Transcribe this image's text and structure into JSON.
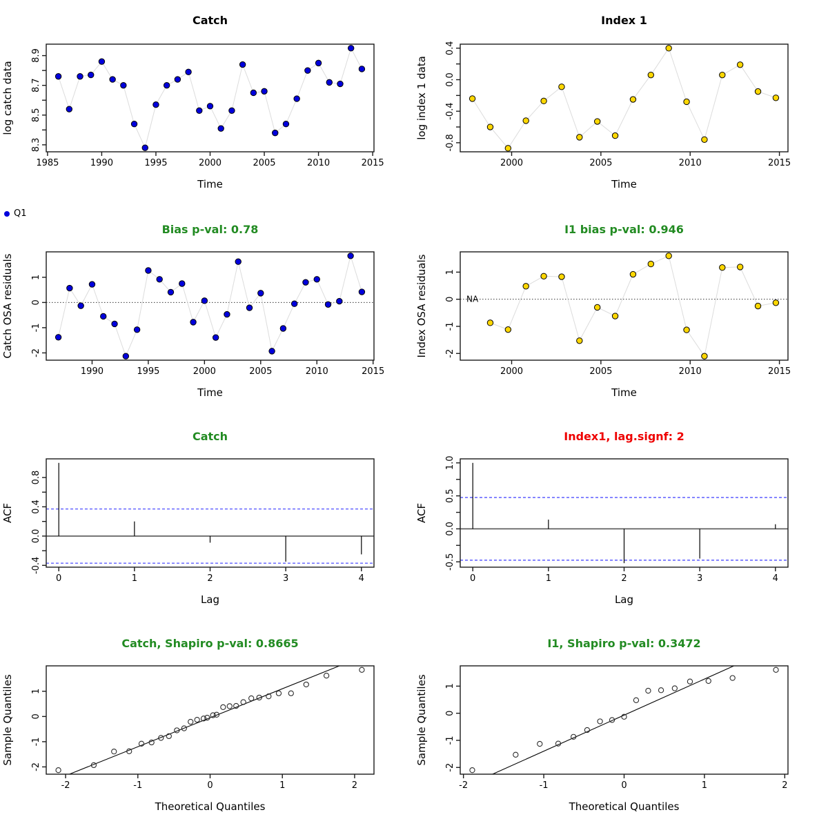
{
  "palette": {
    "point_blue": "#0000DC",
    "point_gold": "#FFD700",
    "title_green": "#228B22",
    "title_red": "#EE0000",
    "title_black": "#000000",
    "connector": "#DCDCDC",
    "conf_line": "#3A3AFF",
    "axis": "#1A1A1A"
  },
  "legend": {
    "label": "Q1"
  },
  "chart_data": [
    {
      "id": "catch-data",
      "type": "scatter",
      "render": "series",
      "connected": true,
      "title": "Catch",
      "title_color": "#000000",
      "xlabel": "Time",
      "ylabel": "log catch data",
      "xlim": [
        1984.88,
        2015.12
      ],
      "ylim": [
        8.253,
        8.977
      ],
      "xticks": [
        1985,
        1990,
        1995,
        2000,
        2005,
        2010,
        2015
      ],
      "xtick_labels": [
        "1985",
        "1990",
        "1995",
        "2000",
        "2005",
        "2010",
        "2015"
      ],
      "yticks": [
        8.3,
        8.4,
        8.5,
        8.6,
        8.7,
        8.8,
        8.9
      ],
      "ytick_labels": [
        "8.3",
        "",
        "8.5",
        "",
        "8.7",
        "",
        "8.9"
      ],
      "point_color": "#0000DC",
      "x": [
        1986,
        1987,
        1988,
        1989,
        1990,
        1991,
        1992,
        1993,
        1994,
        1995,
        1996,
        1997,
        1998,
        1999,
        2000,
        2001,
        2002,
        2003,
        2004,
        2005,
        2006,
        2007,
        2008,
        2009,
        2010,
        2011,
        2012,
        2013,
        2014
      ],
      "y": [
        8.76,
        8.54,
        8.76,
        8.77,
        8.86,
        8.74,
        8.7,
        8.44,
        8.28,
        8.57,
        8.7,
        8.74,
        8.79,
        8.53,
        8.56,
        8.41,
        8.53,
        8.84,
        8.65,
        8.66,
        8.38,
        8.44,
        8.61,
        8.8,
        8.85,
        8.72,
        8.71,
        8.95,
        8.81
      ]
    },
    {
      "id": "index1-data",
      "type": "scatter",
      "render": "series",
      "connected": true,
      "title": "Index 1",
      "title_color": "#000000",
      "xlabel": "Time",
      "ylabel": "log index 1 data",
      "xlim": [
        1997.12,
        2015.48
      ],
      "ylim": [
        -0.915,
        0.451
      ],
      "xticks": [
        2000,
        2005,
        2010,
        2015
      ],
      "xtick_labels": [
        "2000",
        "2005",
        "2010",
        "2015"
      ],
      "yticks": [
        -0.8,
        -0.6,
        -0.4,
        -0.2,
        0,
        0.2,
        0.4
      ],
      "ytick_labels": [
        "-0.8",
        "",
        "-0.4",
        "",
        "0.0",
        "",
        "0.4"
      ],
      "point_color": "#FFD700",
      "x": [
        1997.8,
        1998.8,
        1999.8,
        2000.8,
        2001.8,
        2002.8,
        2003.8,
        2004.8,
        2005.8,
        2006.8,
        2007.8,
        2008.8,
        2009.8,
        2010.8,
        2011.8,
        2012.8,
        2013.8,
        2014.8
      ],
      "y": [
        -0.24,
        -0.6,
        -0.87,
        -0.52,
        -0.27,
        -0.09,
        -0.73,
        -0.53,
        -0.71,
        -0.25,
        0.06,
        0.4,
        -0.28,
        -0.76,
        0.06,
        0.19,
        -0.15,
        -0.23
      ]
    },
    {
      "id": "catch-osa-residuals",
      "type": "scatter",
      "render": "series",
      "connected": true,
      "zero_line": true,
      "title": "Bias p-val: 0.78",
      "title_color": "#228B22",
      "xlabel": "Time",
      "ylabel": "Catch OSA residuals",
      "xlim": [
        1985.92,
        2015.08
      ],
      "ylim": [
        -2.289,
        2.009
      ],
      "xticks": [
        1990,
        1995,
        2000,
        2005,
        2010,
        2015
      ],
      "xtick_labels": [
        "1990",
        "1995",
        "2000",
        "2005",
        "2010",
        "2015"
      ],
      "yticks": [
        -2,
        -1,
        0,
        1
      ],
      "ytick_labels": [
        "-2",
        "-1",
        "0",
        "1"
      ],
      "point_color": "#0000DC",
      "x": [
        1987,
        1988,
        1989,
        1990,
        1991,
        1992,
        1993,
        1994,
        1995,
        1996,
        1997,
        1998,
        1999,
        2000,
        2001,
        2002,
        2003,
        2004,
        2005,
        2006,
        2007,
        2008,
        2009,
        2010,
        2011,
        2012,
        2013,
        2014
      ],
      "y": [
        -1.38,
        0.57,
        -0.13,
        0.72,
        -0.55,
        -0.85,
        -2.13,
        -1.08,
        1.27,
        0.92,
        0.41,
        0.75,
        -0.78,
        0.07,
        -1.39,
        -0.47,
        1.62,
        -0.21,
        0.37,
        -1.93,
        -1.03,
        -0.05,
        0.8,
        0.92,
        -0.08,
        0.05,
        1.85,
        0.42
      ]
    },
    {
      "id": "index1-osa-residuals",
      "type": "scatter",
      "render": "series",
      "connected": true,
      "zero_line": true,
      "title": "I1 bias p-val: 0.946",
      "title_color": "#228B22",
      "xlabel": "Time",
      "ylabel": "Index OSA residuals",
      "xlim": [
        1997.12,
        2015.48
      ],
      "ylim": [
        -2.248,
        1.748
      ],
      "xticks": [
        2000,
        2005,
        2010,
        2015
      ],
      "xtick_labels": [
        "2000",
        "2005",
        "2010",
        "2015"
      ],
      "yticks": [
        -2,
        -1,
        0,
        1
      ],
      "ytick_labels": [
        "-2",
        "-1",
        "0",
        "1"
      ],
      "point_color": "#FFD700",
      "na_label": {
        "x": 1997.8,
        "text": "NA"
      },
      "x": [
        1998.8,
        1999.8,
        2000.8,
        2001.8,
        2002.8,
        2003.8,
        2004.8,
        2005.8,
        2006.8,
        2007.8,
        2008.8,
        2009.8,
        2010.8,
        2011.8,
        2012.8,
        2013.8,
        2014.8
      ],
      "y": [
        -0.87,
        -1.12,
        0.48,
        0.85,
        0.83,
        -1.53,
        -0.3,
        -0.62,
        0.92,
        1.3,
        1.6,
        -1.13,
        -2.1,
        1.17,
        1.19,
        -0.25,
        -0.13
      ]
    },
    {
      "id": "catch-acf",
      "type": "bar",
      "render": "acf",
      "title": "Catch",
      "title_color": "#228B22",
      "xlabel": "Lag",
      "ylabel": "ACF",
      "xlim": [
        -0.166,
        4.166
      ],
      "ylim": [
        -0.425,
        1.055
      ],
      "xticks": [
        0,
        1,
        2,
        3,
        4
      ],
      "xtick_labels": [
        "0",
        "1",
        "2",
        "3",
        "4"
      ],
      "yticks": [
        -0.4,
        -0.2,
        0,
        0.2,
        0.4,
        0.6,
        0.8
      ],
      "ytick_labels": [
        "-0.4",
        "",
        "0.0",
        "",
        "0.4",
        "",
        "0.8"
      ],
      "conf": 0.37,
      "lags": [
        0,
        1,
        2,
        3,
        4
      ],
      "values": [
        1.0,
        0.2,
        -0.09,
        -0.35,
        -0.25
      ]
    },
    {
      "id": "index1-acf",
      "type": "bar",
      "render": "acf",
      "title": "Index1, lag.signf: 2",
      "title_color": "#EE0000",
      "xlabel": "Lag",
      "ylabel": "ACF",
      "xlim": [
        -0.166,
        4.166
      ],
      "ylim": [
        -0.581,
        1.061
      ],
      "xticks": [
        0,
        1,
        2,
        3,
        4
      ],
      "xtick_labels": [
        "0",
        "1",
        "2",
        "3",
        "4"
      ],
      "yticks": [
        -0.5,
        -0.25,
        0,
        0.25,
        0.5,
        0.75,
        1.0
      ],
      "ytick_labels": [
        "-0.5",
        "",
        "0.0",
        "",
        "0.5",
        "",
        "1.0"
      ],
      "conf": 0.475,
      "lags": [
        0,
        1,
        2,
        3,
        4
      ],
      "values": [
        1.0,
        0.14,
        -0.52,
        -0.45,
        0.07
      ]
    },
    {
      "id": "catch-qq",
      "type": "scatter",
      "render": "qq",
      "title": "Catch, Shapiro p-val: 0.8665",
      "title_color": "#228B22",
      "xlabel": "Theoretical Quantiles",
      "ylabel": "Sample Quantiles",
      "xlim": [
        -2.268,
        2.268
      ],
      "ylim": [
        -2.289,
        2.009
      ],
      "xticks": [
        -2,
        -1,
        0,
        1,
        2
      ],
      "xtick_labels": [
        "-2",
        "-1",
        "0",
        "1",
        "2"
      ],
      "yticks": [
        -2,
        -1,
        0,
        1
      ],
      "ytick_labels": [
        "-2",
        "-1",
        "0",
        "1"
      ],
      "line": {
        "x1": -1.947,
        "y1": -2.289,
        "x2": 1.79,
        "y2": 2.009
      },
      "x": [
        -2.1,
        -1.61,
        -1.33,
        -1.12,
        -0.95,
        -0.81,
        -0.68,
        -0.57,
        -0.46,
        -0.36,
        -0.27,
        -0.18,
        -0.09,
        -0.04,
        0.04,
        0.09,
        0.18,
        0.27,
        0.36,
        0.46,
        0.57,
        0.68,
        0.81,
        0.95,
        1.12,
        1.33,
        1.61,
        2.1
      ],
      "y": [
        -2.13,
        -1.93,
        -1.39,
        -1.38,
        -1.08,
        -1.03,
        -0.85,
        -0.78,
        -0.55,
        -0.47,
        -0.21,
        -0.13,
        -0.08,
        -0.05,
        0.05,
        0.07,
        0.37,
        0.41,
        0.42,
        0.57,
        0.72,
        0.75,
        0.8,
        0.92,
        0.92,
        1.27,
        1.62,
        1.85
      ]
    },
    {
      "id": "index1-qq",
      "type": "scatter",
      "render": "qq",
      "title": "I1, Shapiro p-val: 0.3472",
      "title_color": "#228B22",
      "xlabel": "Theoretical Quantiles",
      "ylabel": "Sample Quantiles",
      "xlim": [
        -2.04,
        2.04
      ],
      "ylim": [
        -2.248,
        1.748
      ],
      "xticks": [
        -2,
        -1,
        0,
        1,
        2
      ],
      "xtick_labels": [
        "-2",
        "-1",
        "0",
        "1",
        "2"
      ],
      "yticks": [
        -2,
        -1,
        0,
        1
      ],
      "ytick_labels": [
        "-2",
        "-1",
        "0",
        "1"
      ],
      "line": {
        "x1": -1.638,
        "y1": -2.248,
        "x2": 1.367,
        "y2": 1.748
      },
      "x": [
        -1.89,
        -1.35,
        -1.05,
        -0.82,
        -0.63,
        -0.46,
        -0.3,
        -0.15,
        0.0,
        0.15,
        0.3,
        0.46,
        0.63,
        0.82,
        1.05,
        1.35,
        1.89
      ],
      "y": [
        -2.1,
        -1.53,
        -1.13,
        -1.12,
        -0.87,
        -0.62,
        -0.3,
        -0.25,
        -0.13,
        0.48,
        0.83,
        0.85,
        0.92,
        1.17,
        1.19,
        1.3,
        1.6
      ]
    }
  ]
}
